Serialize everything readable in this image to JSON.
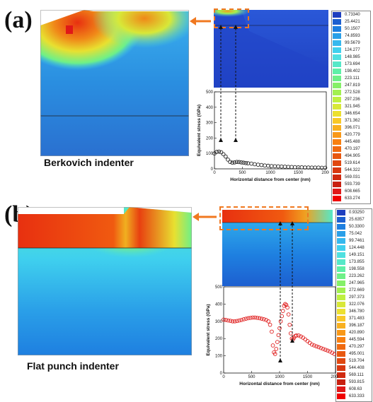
{
  "panels": {
    "a": {
      "label": "(a)",
      "caption": "Berkovich indenter",
      "legend": [
        "0.73340",
        "25.4421",
        "50.1507",
        "74.8593",
        "99.5679",
        "124.277",
        "148.985",
        "173.694",
        "198.402",
        "223.111",
        "247.819",
        "272.528",
        "297.236",
        "321.945",
        "346.654",
        "371.362",
        "396.071",
        "420.779",
        "445.488",
        "470.197",
        "494.905",
        "519.614",
        "544.322",
        "569.031",
        "593.739",
        "608.665",
        "633.274"
      ],
      "legend_colors": [
        "#1f3fbf",
        "#1d5fd0",
        "#1e7fe0",
        "#2a9fe8",
        "#35b8ee",
        "#3fd0ee",
        "#4fe0e0",
        "#55e8c8",
        "#5ef0a8",
        "#6ef088",
        "#85f068",
        "#a2f050",
        "#bef040",
        "#d8e838",
        "#ece030",
        "#f8c828",
        "#f8b020",
        "#f89818",
        "#f88010",
        "#f06a10",
        "#e85810",
        "#e04810",
        "#d83810",
        "#d02a10",
        "#c82010",
        "#e01818",
        "#f00000"
      ]
    },
    "b": {
      "label": "(b)",
      "caption": "Flat punch indenter",
      "legend": [
        "0.93250",
        "25.6357",
        "50.3300",
        "75.042",
        "99.7461",
        "124.448",
        "149.151",
        "173.855",
        "198.558",
        "223.262",
        "247.965",
        "272.669",
        "297.373",
        "322.076",
        "346.780",
        "371.483",
        "396.187",
        "420.890",
        "445.594",
        "470.297",
        "495.001",
        "519.704",
        "544.408",
        "569.111",
        "593.815",
        "608.63",
        "633.333"
      ],
      "legend_colors": [
        "#1f3fbf",
        "#1d5fd0",
        "#1e7fe0",
        "#2a9fe8",
        "#35b8ee",
        "#3fd0ee",
        "#4fe0e0",
        "#55e8c8",
        "#5ef0a8",
        "#6ef088",
        "#85f068",
        "#a2f050",
        "#bef040",
        "#d8e838",
        "#ece030",
        "#f8c828",
        "#f8b020",
        "#f89818",
        "#f88010",
        "#f06a10",
        "#e85810",
        "#e04810",
        "#d83810",
        "#d02a10",
        "#c82010",
        "#e01818",
        "#f00000"
      ]
    }
  },
  "chart_data": [
    {
      "type": "scatter",
      "panel": "a",
      "title": "",
      "xlabel": "Horizontal distance from center (nm)",
      "ylabel": "Equivalent stress (GPa)",
      "xlim": [
        0,
        2000
      ],
      "ylim": [
        0,
        500
      ],
      "xticks": [
        "0",
        "500",
        "1000",
        "1500",
        "2000"
      ],
      "yticks": [
        "0",
        "100",
        "200",
        "300",
        "400",
        "500"
      ],
      "marker_color": "#222222",
      "x": [
        0,
        40,
        80,
        120,
        160,
        200,
        240,
        280,
        320,
        360,
        400,
        440,
        480,
        520,
        560,
        600,
        660,
        720,
        780,
        840,
        900,
        960,
        1020,
        1080,
        1140,
        1200,
        1260,
        1320,
        1380,
        1440,
        1500,
        1560,
        1620,
        1680,
        1740,
        1800,
        1860,
        1920,
        1980
      ],
      "y": [
        100,
        110,
        112,
        108,
        95,
        80,
        60,
        45,
        40,
        42,
        45,
        44,
        42,
        40,
        38,
        36,
        34,
        30,
        27,
        25,
        22,
        20,
        18,
        17,
        16,
        15,
        14,
        13,
        12,
        11,
        10,
        10,
        9,
        9,
        8,
        8,
        8,
        7,
        7
      ]
    },
    {
      "type": "scatter",
      "panel": "b",
      "title": "",
      "xlabel": "Horizontal distance from center (nm)",
      "ylabel": "Equivalent stress (GPa)",
      "xlim": [
        0,
        2000
      ],
      "ylim": [
        0,
        500
      ],
      "xticks": [
        "0",
        "500",
        "1000",
        "1500",
        "2000"
      ],
      "yticks": [
        "0",
        "100",
        "200",
        "300",
        "400",
        "500"
      ],
      "marker_color": "#e02020",
      "x": [
        0,
        40,
        80,
        120,
        160,
        200,
        240,
        280,
        320,
        360,
        400,
        440,
        480,
        520,
        560,
        600,
        640,
        680,
        720,
        760,
        800,
        830,
        860,
        880,
        900,
        920,
        940,
        960,
        980,
        1000,
        1020,
        1040,
        1060,
        1080,
        1100,
        1120,
        1140,
        1160,
        1180,
        1200,
        1220,
        1240,
        1260,
        1280,
        1300,
        1340,
        1380,
        1420,
        1460,
        1500,
        1540,
        1580,
        1620,
        1660,
        1700,
        1740,
        1780,
        1820,
        1860,
        1900,
        1940,
        1980
      ],
      "y": [
        310,
        308,
        305,
        303,
        300,
        300,
        302,
        305,
        308,
        312,
        315,
        318,
        320,
        322,
        322,
        320,
        318,
        315,
        312,
        308,
        300,
        280,
        240,
        160,
        120,
        110,
        140,
        180,
        220,
        260,
        300,
        330,
        360,
        390,
        400,
        395,
        380,
        340,
        280,
        230,
        200,
        195,
        205,
        215,
        218,
        218,
        212,
        205,
        195,
        185,
        175,
        165,
        160,
        155,
        150,
        145,
        140,
        135,
        130,
        125,
        118,
        110
      ]
    }
  ]
}
